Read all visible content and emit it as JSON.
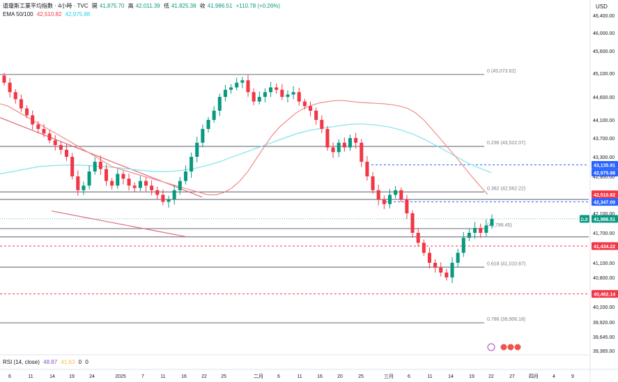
{
  "header": {
    "title": "道瓊斯工業平均指數 · 4小時 · TVC",
    "open_label": "開",
    "open": "41,875.70",
    "high_label": "高",
    "high": "42,011.39",
    "low_label": "低",
    "low": "41,825.38",
    "close_label": "收",
    "close": "41,986.51",
    "change": "+110.78 (+0.26%)",
    "ema_label": "EMA 50/100",
    "ema50": "42,510.82",
    "ema100": "42,975.98",
    "currency": "USD"
  },
  "rsi_panel": {
    "label": "RSI (14, close)",
    "value": "48.87",
    "ma": "41.63",
    "extra1": "0",
    "extra2": "0"
  },
  "colors": {
    "up": "#089981",
    "down": "#f23645",
    "ema50": "#f28b8b",
    "ema100": "#7fe3ec",
    "trendline": "#e06a7a",
    "level": "#787b86",
    "blue_level": "#2962ff",
    "red_level": "#f23645"
  },
  "chart_data": {
    "type": "candlestick",
    "symbol": "DJI",
    "y_axis_ticks": [
      "46,400.00",
      "46,000.00",
      "45,600.00",
      "45,100.00",
      "44,600.00",
      "44,100.00",
      "43,700.00",
      "43,300.00",
      "42,900.00",
      "42,100.00",
      "41,700.00",
      "41,100.00",
      "40,800.00",
      "40,200.00",
      "39,920.00",
      "39,645.00",
      "39,365.00"
    ],
    "x_axis_ticks": [
      "6",
      "11",
      "14",
      "19",
      "24",
      "2025",
      "7",
      "11",
      "16",
      "22",
      "25",
      "二月",
      "6",
      "11",
      "16",
      "20",
      "25",
      "三月",
      "6",
      "11",
      "14",
      "19",
      "22",
      "27",
      "四月",
      "4",
      "9"
    ],
    "fib_levels": [
      {
        "label": "0 (45,073.62)",
        "value": 45073.62
      },
      {
        "label": "0.236 (43,522.07)",
        "value": 43522.07
      },
      {
        "label": "0.382 (42,562.22)",
        "value": 42562.22
      },
      {
        "label": "(41,786.45)",
        "value": 41786.45
      },
      {
        "label": "0.618 (41,010.67)",
        "value": 41010.67
      },
      {
        "label": "0.786 (39,906.18)",
        "value": 39906.18
      }
    ],
    "price_badges": [
      {
        "label": "43,135.91",
        "value": 43135.91,
        "color": "#2962ff"
      },
      {
        "label": "42,975.98",
        "value": 42975.98,
        "color": "#2962ff"
      },
      {
        "label": "42,510.82",
        "value": 42510.82,
        "color": "#f23645"
      },
      {
        "label": "42,347.00",
        "value": 42347.0,
        "color": "#2962ff"
      },
      {
        "label": "41,986.51",
        "value": 41986.51,
        "color": "#089981"
      },
      {
        "label": "41,434.22",
        "value": 41434.22,
        "color": "#f23645"
      },
      {
        "label": "40,462.14",
        "value": 40462.14,
        "color": "#f23645"
      }
    ],
    "last_price_label": "DJI",
    "candles_close": [
      44900,
      44700,
      44550,
      44350,
      44200,
      44000,
      43900,
      43800,
      43650,
      43550,
      43450,
      43300,
      42900,
      42600,
      42700,
      43000,
      43200,
      43050,
      42800,
      42700,
      42950,
      42850,
      42700,
      42650,
      42800,
      42700,
      42600,
      42500,
      42350,
      42400,
      42600,
      42800,
      43000,
      43300,
      43600,
      43900,
      44100,
      44300,
      44600,
      44750,
      44800,
      44900,
      44950,
      44700,
      44500,
      44600,
      44700,
      44800,
      44750,
      44600,
      44650,
      44700,
      44500,
      44400,
      44300,
      44100,
      43900,
      43500,
      43400,
      43600,
      43500,
      43700,
      43600,
      43200,
      42900,
      42600,
      42400,
      42300,
      42500,
      42600,
      42400,
      42100,
      41700,
      41500,
      41300,
      41100,
      41000,
      40900,
      40800,
      41100,
      41300,
      41600,
      41700,
      41800,
      41700,
      41850,
      41986.51
    ],
    "ema50": [
      44450,
      44400,
      44300,
      44200,
      44100,
      44000,
      43900,
      43800,
      43700,
      43600,
      43500,
      43400,
      43300,
      43200,
      43100,
      43050,
      43000,
      42950,
      42900,
      42850,
      42800,
      42750,
      42700,
      42650,
      42600,
      42550,
      42500,
      42500,
      42550,
      42650,
      42800,
      43000,
      43250,
      43500,
      43750,
      43950,
      44100,
      44250,
      44350,
      44420,
      44470,
      44500,
      44520,
      44520,
      44500,
      44480,
      44470,
      44460,
      44450,
      44430,
      44400,
      44350,
      44250,
      44100,
      43900,
      43700,
      43500,
      43300,
      43100,
      42900,
      42700,
      42510.82
    ],
    "ema100": [
      42950,
      43000,
      43050,
      43100,
      43120,
      43130,
      43130,
      43120,
      43100,
      43080,
      43050,
      43020,
      43000,
      43000,
      43020,
      43060,
      43120,
      43200,
      43300,
      43400,
      43500,
      43600,
      43700,
      43800,
      43870,
      43920,
      43960,
      44000,
      44010,
      43990,
      43950,
      43880,
      43780,
      43650,
      43500,
      43350,
      43200,
      43080,
      42975.98
    ],
    "ylim": [
      39365,
      46500
    ]
  }
}
